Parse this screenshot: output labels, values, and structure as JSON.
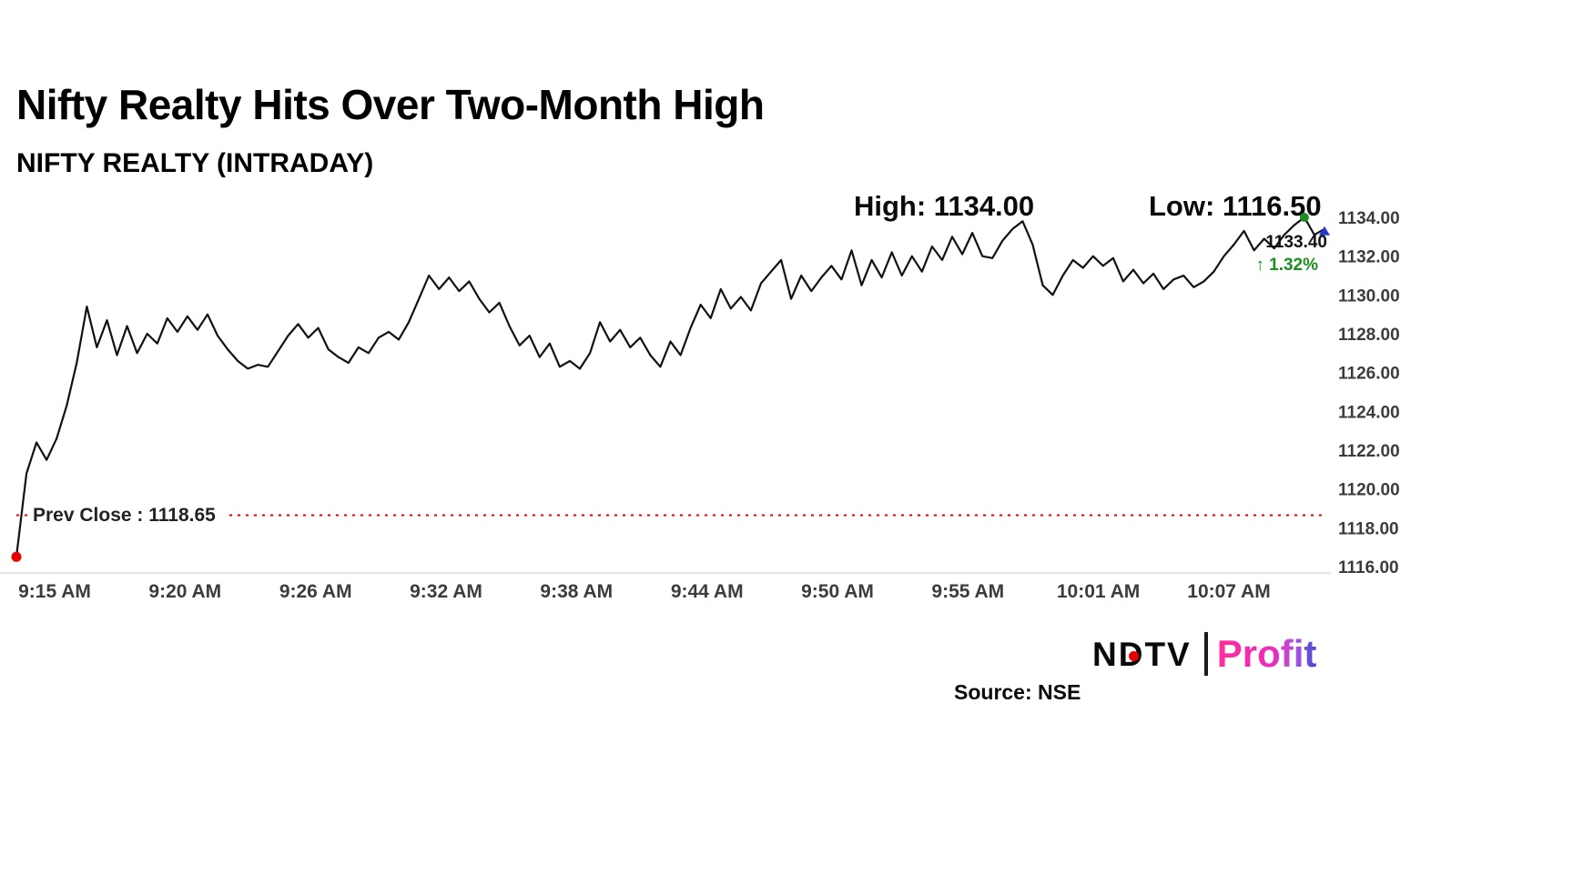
{
  "header": {
    "title": "Nifty Realty Hits Over Two-Month High",
    "subtitle": "NIFTY REALTY (INTRADAY)"
  },
  "annotations": {
    "high_label": "High: 1134.00",
    "low_label": "Low: 1116.50",
    "last_price": "1133.40",
    "change_pct": "↑ 1.32%",
    "prev_close_label": "Prev Close : 1118.65"
  },
  "footer": {
    "logo_ndtv": "NDTV",
    "logo_profit": "Profit",
    "source": "Source: NSE"
  },
  "colors": {
    "line": "#111111",
    "prev_close_line": "#e60000",
    "start_marker": "#e60000",
    "high_marker": "#1e8c1e",
    "last_marker": "#2239cc",
    "gain_text": "#1e8c1e",
    "axis_text": "#3c3c3c",
    "baseline": "#c8c8c8"
  },
  "chart_data": {
    "type": "line",
    "title": "NIFTY REALTY (INTRADAY)",
    "x_ticks": [
      "9:15 AM",
      "9:20 AM",
      "9:26 AM",
      "9:32 AM",
      "9:38 AM",
      "9:44 AM",
      "9:50 AM",
      "9:55 AM",
      "10:01 AM",
      "10:07 AM"
    ],
    "y_ticks": [
      1134,
      1132,
      1130,
      1128,
      1126,
      1124,
      1122,
      1120,
      1118,
      1116
    ],
    "ylim": [
      1116,
      1134
    ],
    "grid": false,
    "legend": false,
    "prev_close": 1118.65,
    "high": 1134.0,
    "low": 1116.5,
    "last": 1133.4,
    "change_pct": 1.32,
    "series": [
      {
        "name": "NIFTY REALTY",
        "values": [
          1116.5,
          1120.8,
          1122.4,
          1121.5,
          1122.6,
          1124.3,
          1126.5,
          1129.4,
          1127.3,
          1128.7,
          1126.9,
          1128.4,
          1127.0,
          1128.0,
          1127.5,
          1128.8,
          1128.1,
          1128.9,
          1128.2,
          1129.0,
          1127.9,
          1127.2,
          1126.6,
          1126.2,
          1126.4,
          1126.3,
          1127.1,
          1127.9,
          1128.5,
          1127.8,
          1128.3,
          1127.2,
          1126.8,
          1126.5,
          1127.3,
          1127.0,
          1127.8,
          1128.1,
          1127.7,
          1128.6,
          1129.8,
          1131.0,
          1130.3,
          1130.9,
          1130.2,
          1130.7,
          1129.8,
          1129.1,
          1129.6,
          1128.4,
          1127.4,
          1127.9,
          1126.8,
          1127.5,
          1126.3,
          1126.6,
          1126.2,
          1127.0,
          1128.6,
          1127.6,
          1128.2,
          1127.3,
          1127.8,
          1126.9,
          1126.3,
          1127.6,
          1126.9,
          1128.3,
          1129.5,
          1128.8,
          1130.3,
          1129.3,
          1129.9,
          1129.2,
          1130.6,
          1131.2,
          1131.8,
          1129.8,
          1131.0,
          1130.2,
          1130.9,
          1131.5,
          1130.8,
          1132.3,
          1130.5,
          1131.8,
          1130.9,
          1132.2,
          1131.0,
          1132.0,
          1131.2,
          1132.5,
          1131.8,
          1133.0,
          1132.1,
          1133.2,
          1132.0,
          1131.9,
          1132.8,
          1133.4,
          1133.8,
          1132.6,
          1130.5,
          1130.0,
          1131.0,
          1131.8,
          1131.4,
          1132.0,
          1131.5,
          1131.9,
          1130.7,
          1131.3,
          1130.6,
          1131.1,
          1130.3,
          1130.8,
          1131.0,
          1130.4,
          1130.7,
          1131.2,
          1132.0,
          1132.6,
          1133.3,
          1132.3,
          1132.9,
          1132.4,
          1133.1,
          1133.6,
          1134.0,
          1133.1,
          1133.4
        ]
      }
    ]
  }
}
